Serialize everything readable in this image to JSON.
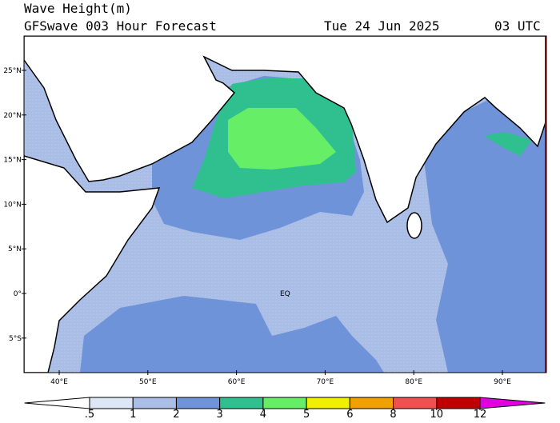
{
  "header": {
    "title": "Wave Height(m)",
    "model": "GFSwave 003 Hour Forecast",
    "date": "Tue 24 Jun 2025",
    "time": "03 UTC"
  },
  "map": {
    "lat_labels": [
      "25°N",
      "20°N",
      "15°N",
      "10°N",
      "5°N",
      "0°",
      "5°S"
    ],
    "lon_labels": [
      "40°E",
      "50°E",
      "60°E",
      "70°E",
      "80°E",
      "90°E"
    ],
    "equator_label": "EQ"
  },
  "colorbar": {
    "levels": [
      {
        "value": 0.5,
        "label": ".5"
      },
      1,
      2,
      3,
      4,
      5,
      6,
      8,
      10,
      12
    ],
    "colors": [
      "#ffffff",
      "#dce6f5",
      "#a9bde6",
      "#6f93d8",
      "#30c090",
      "#66ee66",
      "#f0f000",
      "#f0a000",
      "#f05050",
      "#c00000",
      "#e000e0"
    ]
  }
}
